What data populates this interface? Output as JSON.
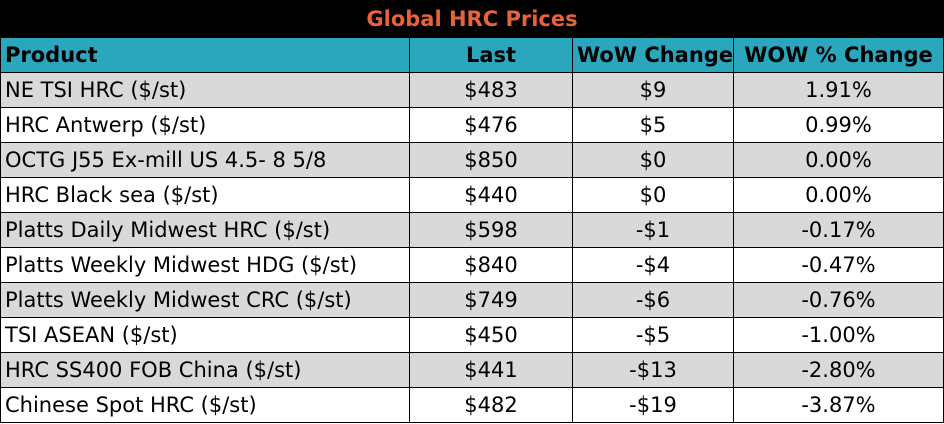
{
  "title": "Global HRC Prices",
  "columns": [
    "Product",
    "Last",
    "WoW Change",
    "WOW % Change"
  ],
  "rows": [
    [
      "NE TSI HRC ($/st)",
      "$483",
      "$9",
      "1.91%"
    ],
    [
      "HRC Antwerp ($/st)",
      "$476",
      "$5",
      "0.99%"
    ],
    [
      "OCTG J55 Ex-mill US 4.5- 8 5/8",
      "$850",
      "$0",
      "0.00%"
    ],
    [
      "HRC Black sea ($/st)",
      "$440",
      "$0",
      "0.00%"
    ],
    [
      "Platts Daily Midwest HRC ($/st)",
      "$598",
      "-$1",
      "-0.17%"
    ],
    [
      "Platts Weekly Midwest HDG ($/st)",
      "$840",
      "-$4",
      "-0.47%"
    ],
    [
      "Platts Weekly Midwest CRC ($/st)",
      "$749",
      "-$6",
      "-0.76%"
    ],
    [
      "TSI ASEAN ($/st)",
      "$450",
      "-$5",
      "-1.00%"
    ],
    [
      "HRC SS400 FOB China ($/st)",
      "$441",
      "-$13",
      "-2.80%"
    ],
    [
      "Chinese Spot HRC ($/st)",
      "$482",
      "-$19",
      "-3.87%"
    ]
  ],
  "colors": {
    "title_background": "#000000",
    "title_text": "#e8623a",
    "header_background": "#2aa6bd",
    "shaded_row": "#d9d9d9",
    "plain_row": "#ffffff"
  }
}
